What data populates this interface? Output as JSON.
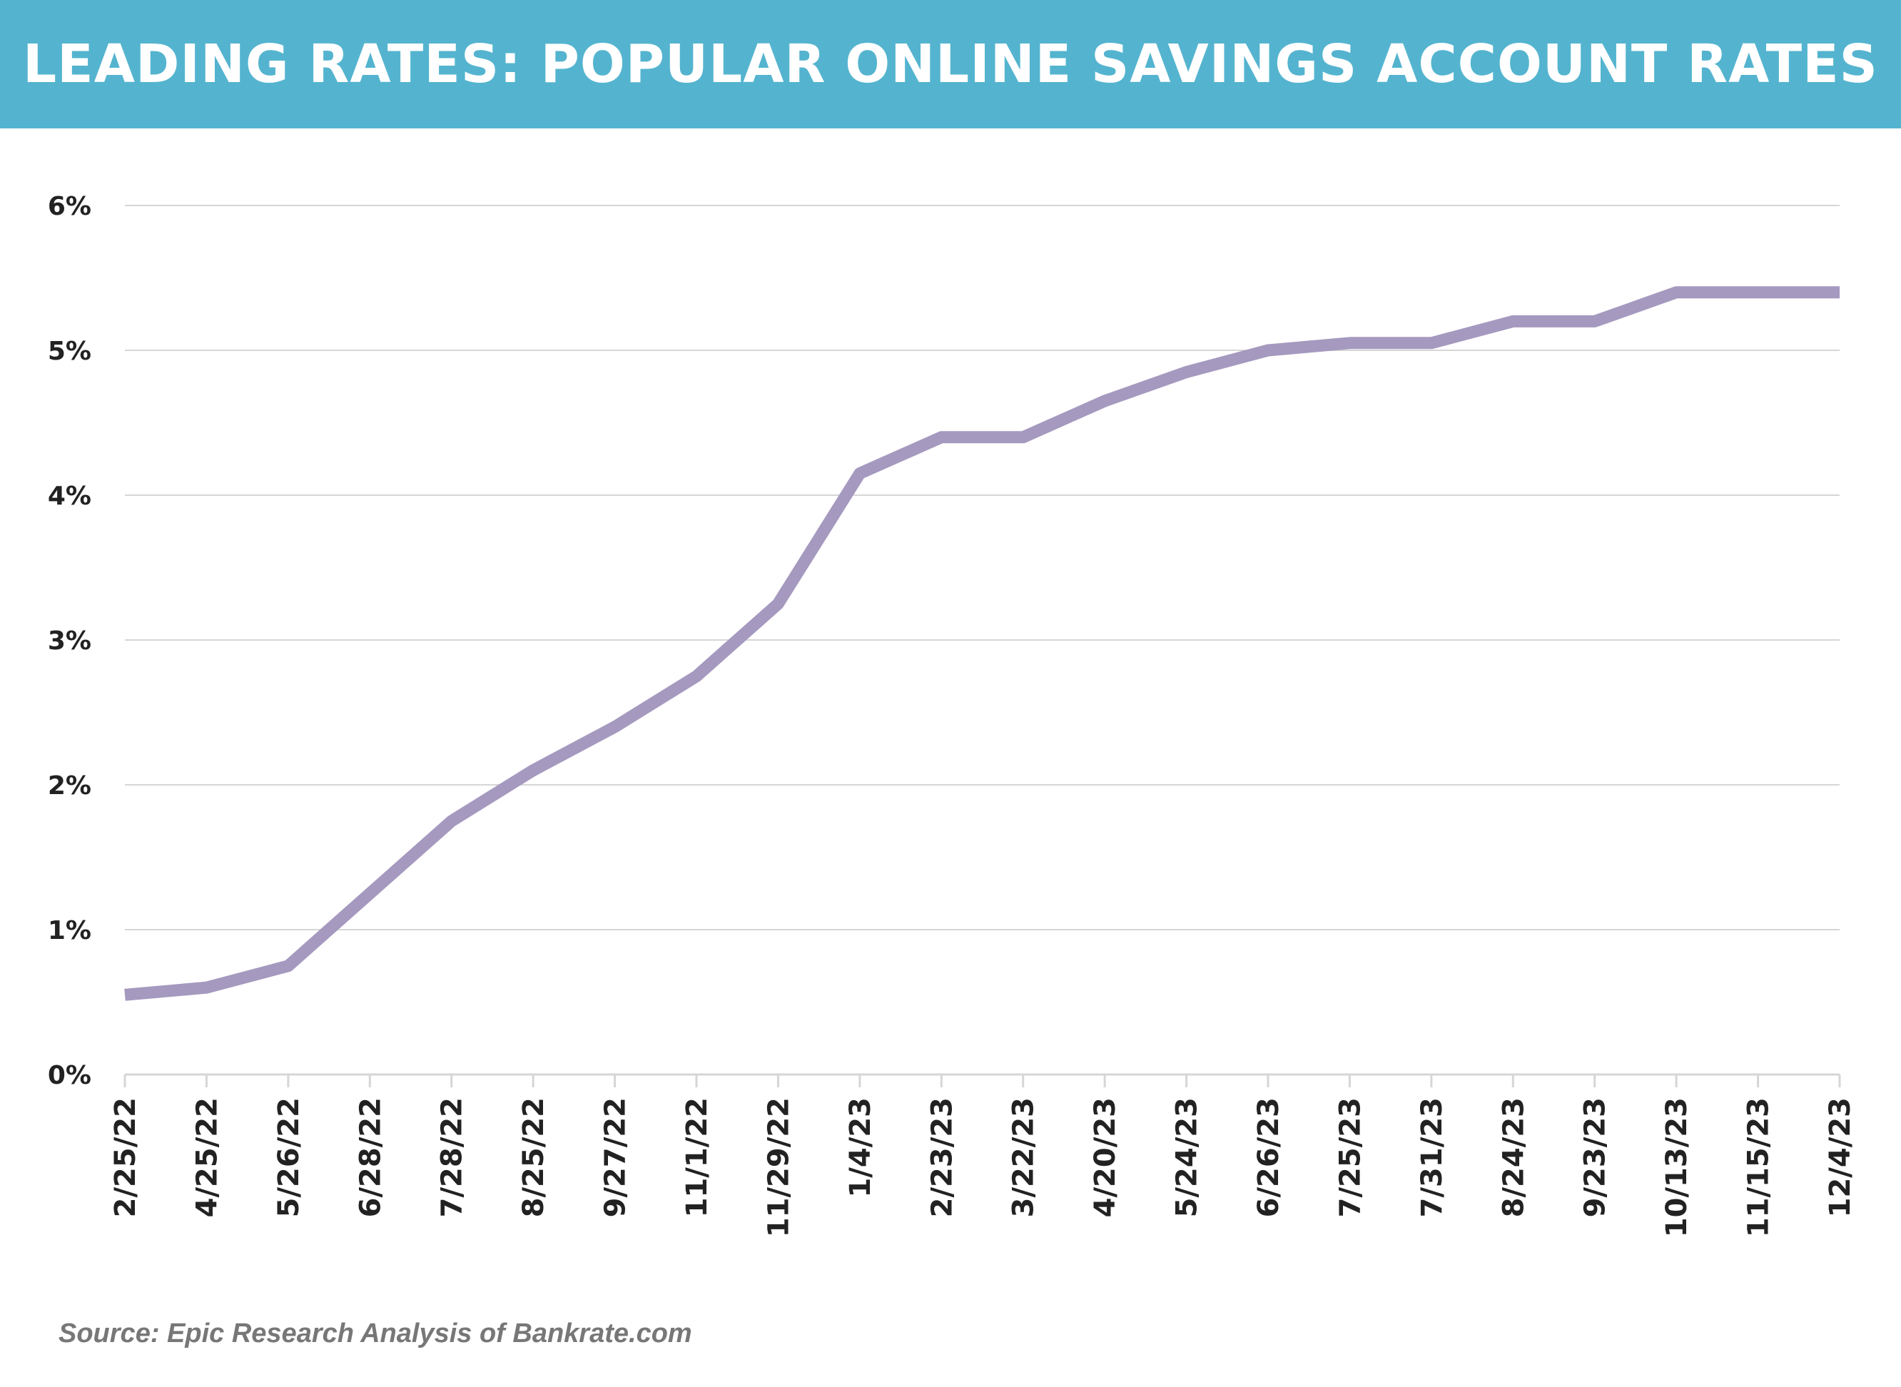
{
  "chart_data": {
    "type": "line",
    "title": "LEADING RATES: POPULAR ONLINE SAVINGS ACCOUNT RATES",
    "source": "Source: Epic Research Analysis of Bankrate.com",
    "xlabel": "",
    "ylabel": "",
    "ylim": [
      0,
      6
    ],
    "yticks": [
      "0%",
      "1%",
      "2%",
      "3%",
      "4%",
      "5%",
      "6%"
    ],
    "grid": true,
    "legend": "none",
    "categories": [
      "2/25/22",
      "4/25/22",
      "5/26/22",
      "6/28/22",
      "7/28/22",
      "8/25/22",
      "9/27/22",
      "11/1/22",
      "11/29/22",
      "1/4/23",
      "2/23/23",
      "3/22/23",
      "4/20/23",
      "5/24/23",
      "6/26/23",
      "7/25/23",
      "7/31/23",
      "8/24/23",
      "9/23/23",
      "10/13/23",
      "11/15/23",
      "12/4/23"
    ],
    "series": [
      {
        "values": [
          0.55,
          0.6,
          0.75,
          1.25,
          1.75,
          2.1,
          2.4,
          2.75,
          3.25,
          4.15,
          4.4,
          4.4,
          4.65,
          4.85,
          5.0,
          5.05,
          5.05,
          5.2,
          5.2,
          5.4,
          5.4,
          5.4
        ],
        "color": "#a599bf"
      }
    ],
    "colors": {
      "banner": "#54b4cf",
      "line": "#a599bf",
      "grid": "#d6d6d6"
    }
  }
}
